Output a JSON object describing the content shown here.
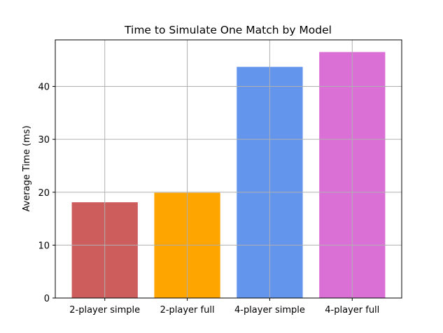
{
  "chart_data": {
    "type": "bar",
    "title": "Time to Simulate One Match by Model",
    "xlabel": "",
    "ylabel": "Average Time (ms)",
    "categories": [
      "2-player simple",
      "2-player full",
      "4-player simple",
      "4-player full"
    ],
    "values": [
      18.1,
      19.9,
      43.7,
      46.5
    ],
    "colors": [
      "#cd5c5c",
      "#ffa500",
      "#6495ed",
      "#da70d6"
    ],
    "yticks": [
      0,
      10,
      20,
      30,
      40
    ],
    "ylim": [
      0,
      48.8
    ],
    "grid": true
  }
}
